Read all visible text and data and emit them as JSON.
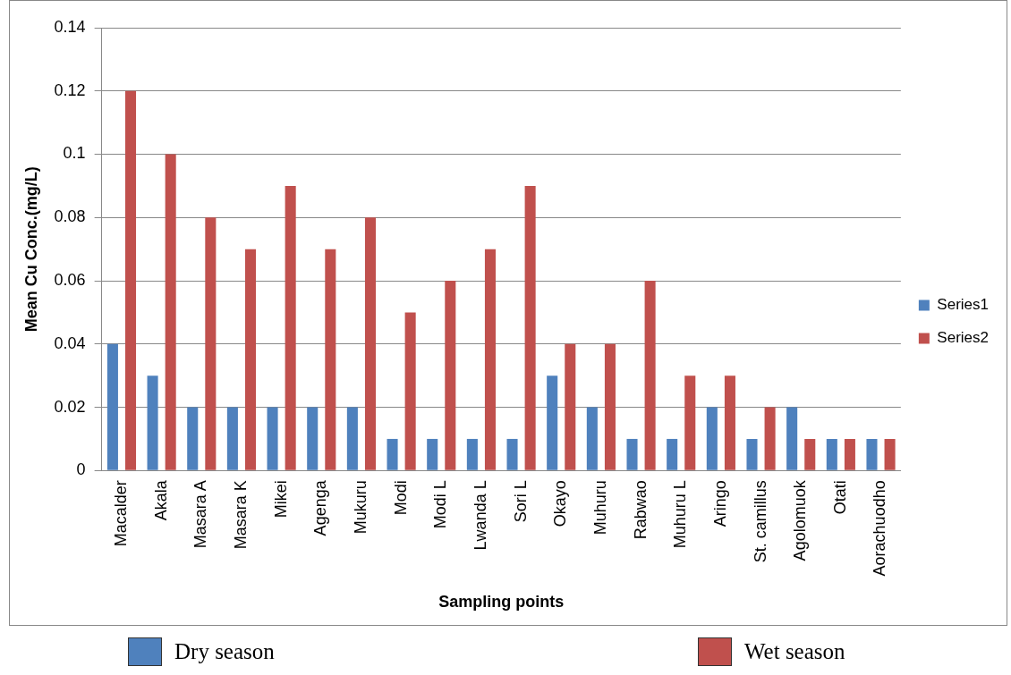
{
  "chart_data": {
    "type": "bar",
    "xlabel": "Sampling points",
    "ylabel": "Mean Cu Conc.(mg/L)",
    "categories": [
      "Macalder",
      "Akala",
      "Masara A",
      "Masara K",
      "Mikei",
      "Agenga",
      "Mukuru",
      "Modi",
      "Modi L",
      "Lwanda L",
      "Sori L",
      "Okayo",
      "Muhuru",
      "Rabwao",
      "Muhuru L",
      "Aringo",
      "St. camillus",
      "Agolomuok",
      "Otati",
      "Aorachuodho"
    ],
    "series": [
      {
        "name": "Series1",
        "color": "#4f81bd",
        "values": [
          0.04,
          0.03,
          0.02,
          0.02,
          0.02,
          0.02,
          0.02,
          0.01,
          0.01,
          0.01,
          0.01,
          0.03,
          0.02,
          0.01,
          0.01,
          0.02,
          0.01,
          0.02,
          0.01,
          0.01
        ]
      },
      {
        "name": "Series2",
        "color": "#c0504d",
        "values": [
          0.12,
          0.1,
          0.08,
          0.07,
          0.09,
          0.07,
          0.08,
          0.05,
          0.06,
          0.07,
          0.09,
          0.04,
          0.04,
          0.06,
          0.03,
          0.03,
          0.02,
          0.01,
          0.01,
          0.01
        ]
      }
    ],
    "ylim": [
      0,
      0.14
    ],
    "yticks": [
      0,
      0.02,
      0.04,
      0.06,
      0.08,
      0.1,
      0.12,
      0.14
    ],
    "grid": "y",
    "legend": "right",
    "annotations": [
      "Dry season",
      "Wet season"
    ]
  }
}
